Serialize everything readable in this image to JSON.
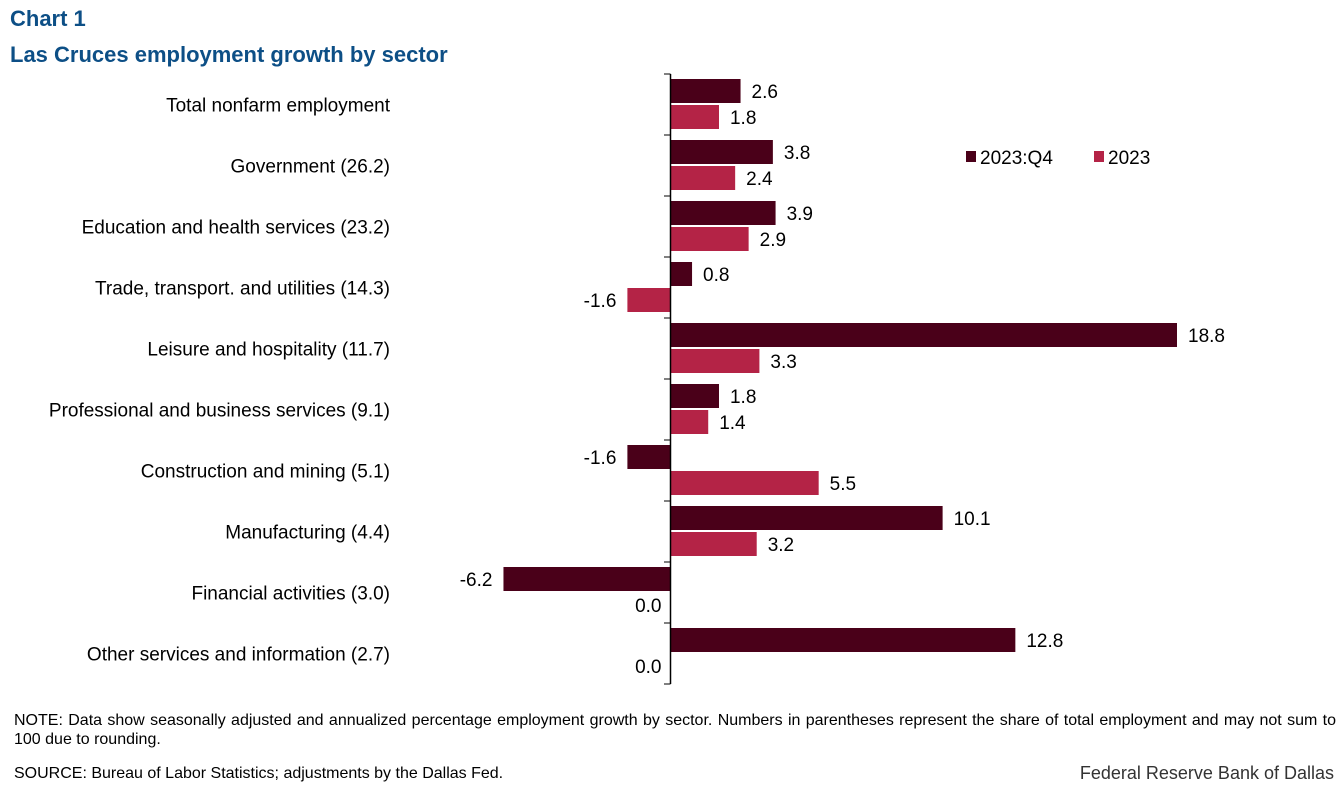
{
  "header": {
    "label": "Chart 1",
    "title": "Las Cruces employment  growth by sector"
  },
  "chart_data": {
    "type": "bar",
    "orientation": "horizontal",
    "title": "Las Cruces employment growth by sector",
    "xlabel": "",
    "ylabel": "",
    "xlim": [
      -6.2,
      18.8
    ],
    "grid": false,
    "legend_position": "top-right",
    "categories": [
      "Total nonfarm employment",
      "Government (26.2)",
      "Education and health services (23.2)",
      "Trade, transport. and utilities (14.3)",
      "Leisure and hospitality (11.7)",
      "Professional and business services (9.1)",
      "Construction and mining (5.1)",
      "Manufacturing (4.4)",
      "Financial activities (3.0)",
      "Other services and information (2.7)"
    ],
    "series": [
      {
        "name": "2023:Q4",
        "color": "#4a0019",
        "values": [
          2.6,
          3.8,
          3.9,
          0.8,
          18.8,
          1.8,
          -1.6,
          10.1,
          -6.2,
          12.8
        ],
        "labels": [
          "2.6",
          "3.8",
          "3.9",
          "0.8",
          "18.8",
          "1.8",
          "-1.6",
          "10.1",
          "-6.2",
          "12.8"
        ]
      },
      {
        "name": "2023",
        "color": "#b42346",
        "values": [
          1.8,
          2.4,
          2.9,
          -1.6,
          3.3,
          1.4,
          5.5,
          3.2,
          0.0,
          0.0
        ],
        "labels": [
          "1.8",
          "2.4",
          "2.9",
          "-1.6",
          "3.3",
          "1.4",
          "5.5",
          "3.2",
          "0.0",
          "0.0"
        ]
      }
    ]
  },
  "footer": {
    "note": "NOTE: Data show seasonally adjusted and annualized  percentage employment growth by sector. Numbers in parentheses represent the share of total employment and may not sum to 100 due to rounding.",
    "source": "SOURCE:  Bureau of Labor Statistics; adjustments  by the Dallas Fed.",
    "credit": "Federal Reserve Bank of Dallas"
  }
}
